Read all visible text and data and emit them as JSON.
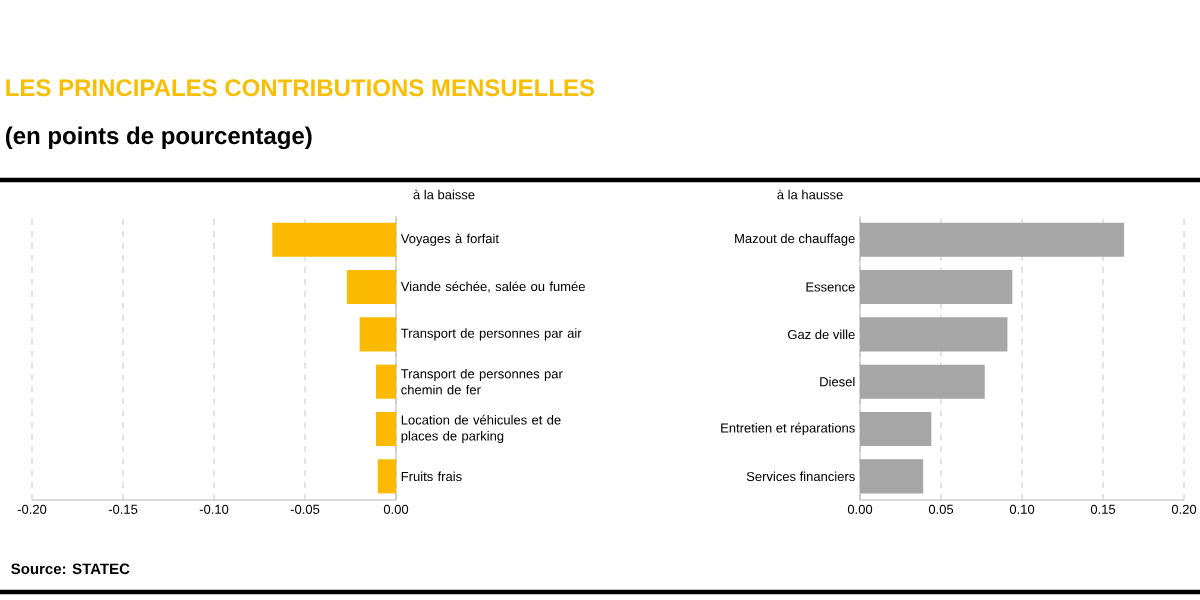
{
  "chart_data": [
    {
      "type": "other",
      "title": "LES PRINCIPALES CONTRIBUTIONS MENSUELLES",
      "subtitle": "(en points de pourcentage)",
      "annotations": [
        "Source: STATEC"
      ]
    },
    {
      "type": "bar",
      "orientation": "horizontal",
      "title": "à la baisse",
      "grid": "x",
      "color": "#fbb900",
      "categories": [
        "Voyages à forfait",
        "Viande séchée, salée ou fumée",
        "Transport de personnes par air",
        "Transport de personnes par chemin de fer",
        "Location de véhicules et de places de parking",
        "Fruits frais"
      ],
      "values": [
        -0.068,
        -0.027,
        -0.02,
        -0.011,
        -0.011,
        -0.01
      ],
      "xlim": [
        -0.2,
        0
      ],
      "xticks": [
        {
          "value": -0.2,
          "label": "-0.20"
        },
        {
          "value": -0.15,
          "label": "-0.15"
        },
        {
          "value": -0.1,
          "label": "-0.10"
        },
        {
          "value": -0.05,
          "label": "-0.05"
        },
        {
          "value": 0,
          "label": "0.00"
        }
      ]
    },
    {
      "type": "bar",
      "orientation": "horizontal",
      "title": "à la hausse",
      "grid": "x",
      "color": "#a6a6a6",
      "categories": [
        "Mazout de chauffage",
        "Essence",
        "Gaz de ville",
        "Diesel",
        "Entretien et réparations",
        "Services financiers"
      ],
      "values": [
        0.163,
        0.094,
        0.091,
        0.077,
        0.044,
        0.039
      ],
      "xlim": [
        0,
        0.2
      ],
      "xticks": [
        {
          "value": 0,
          "label": "0.00"
        },
        {
          "value": 0.05,
          "label": "0.05"
        },
        {
          "value": 0.1,
          "label": "0.10"
        },
        {
          "value": 0.15,
          "label": "0.15"
        },
        {
          "value": 0.2,
          "label": "0.20"
        }
      ]
    }
  ]
}
